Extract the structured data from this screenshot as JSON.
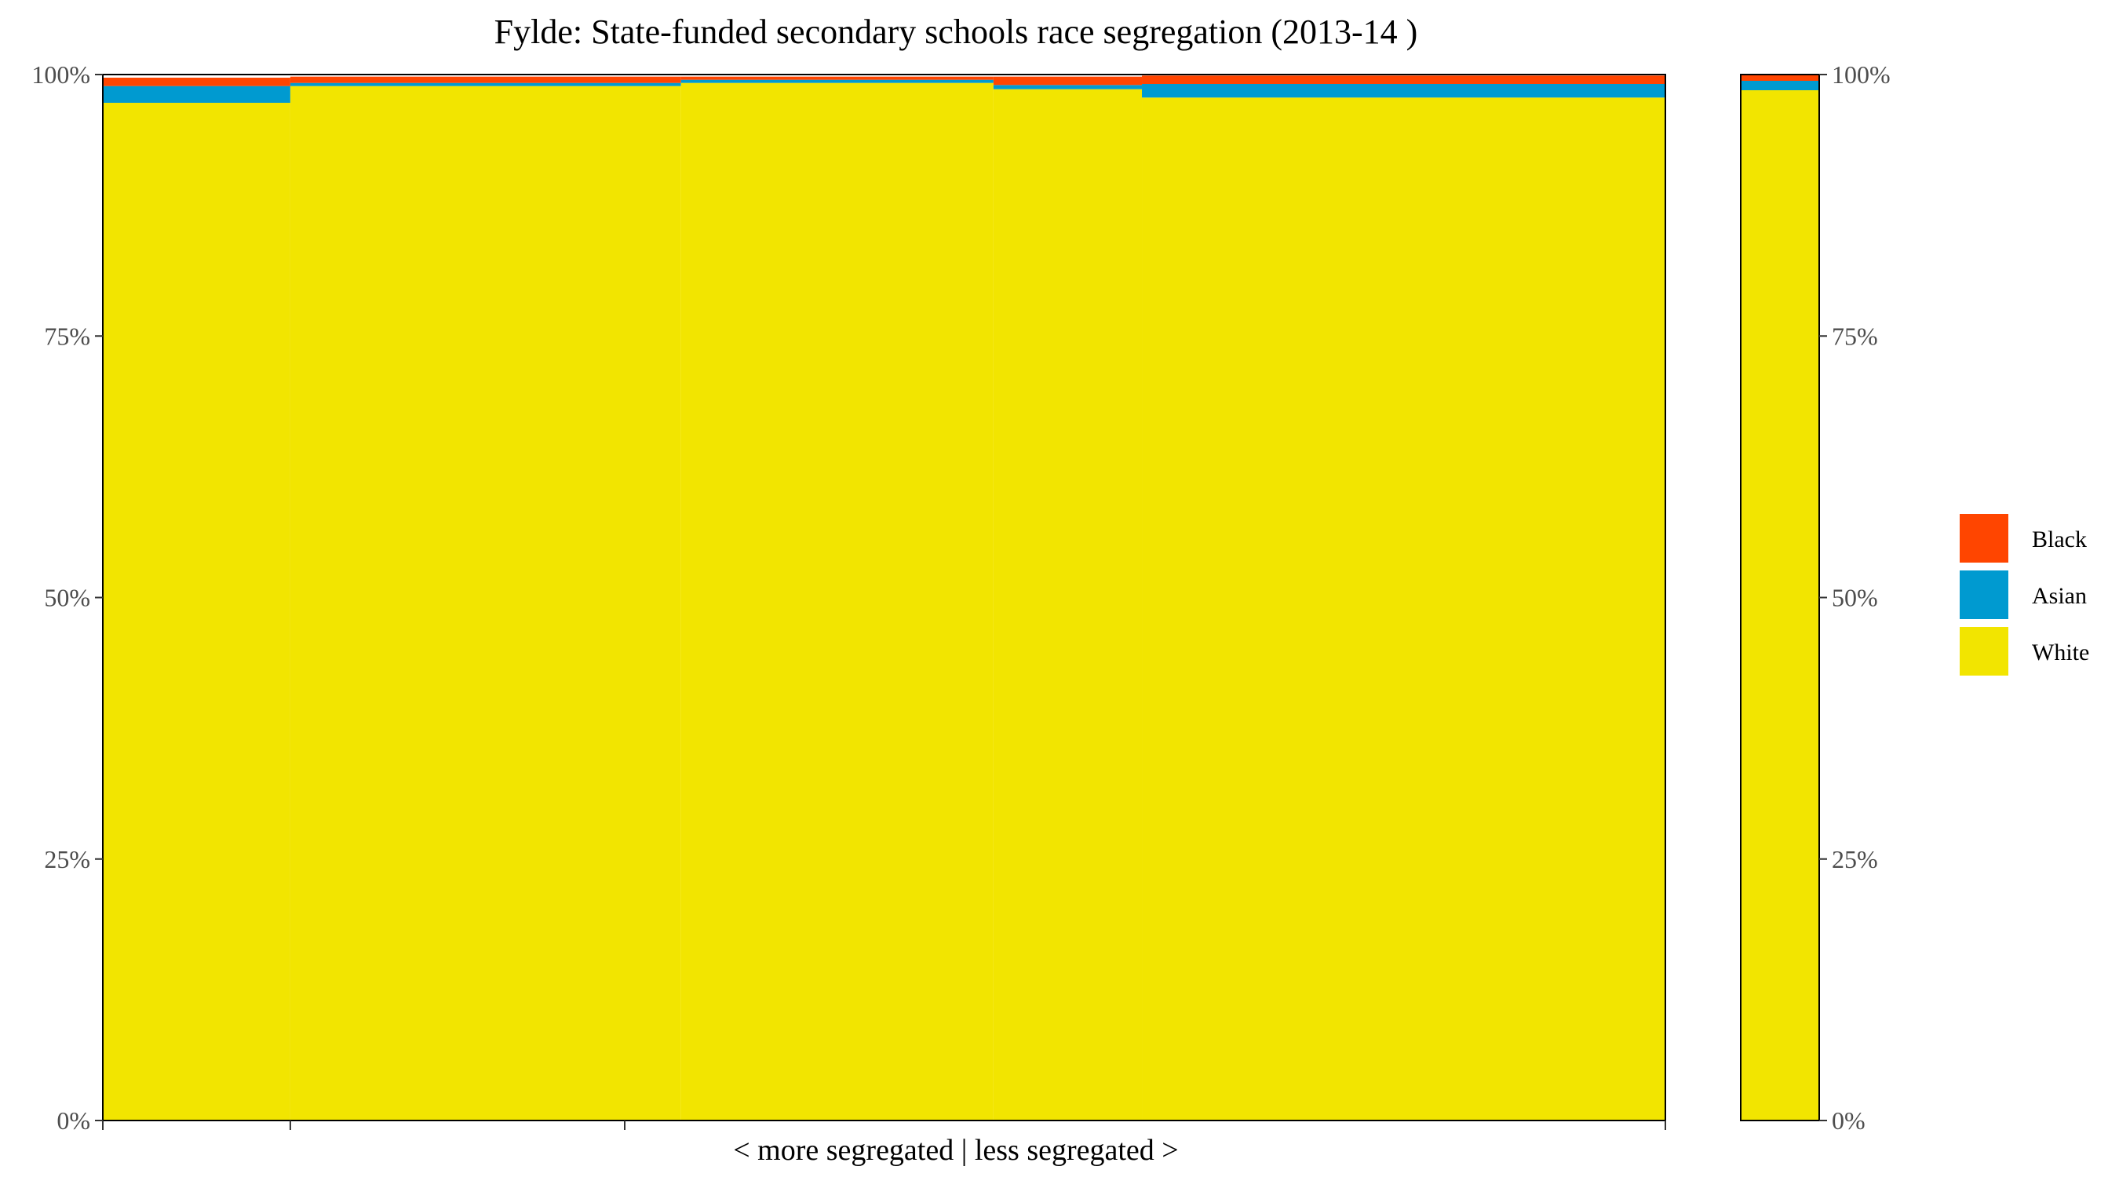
{
  "chart_data": {
    "type": "bar",
    "subtype": "stacked-marimekko",
    "title": "Fylde: State-funded secondary schools race segregation (2013-14 )",
    "xlabel": "< more segregated | less segregated >",
    "ylabel": "",
    "ylim": [
      0,
      100
    ],
    "yticks": [
      "0%",
      "25%",
      "50%",
      "75%",
      "100%"
    ],
    "yticks_right": [
      "0%",
      "25%",
      "50%",
      "75%",
      "100%"
    ],
    "legend": {
      "position": "right",
      "entries": [
        "Black",
        "Asian",
        "White"
      ]
    },
    "colors": {
      "Black": "#ff4500",
      "Asian": "#009ad0",
      "White": "#f2e500"
    },
    "schools": [
      {
        "share": 0.12,
        "White": 97.3,
        "Asian": 1.6,
        "Black": 0.8
      },
      {
        "share": 0.25,
        "White": 98.9,
        "Asian": 0.3,
        "Black": 0.6
      },
      {
        "share": 0.2,
        "White": 99.2,
        "Asian": 0.3,
        "Black": 0.3
      },
      {
        "share": 0.095,
        "White": 98.6,
        "Asian": 0.4,
        "Black": 0.8
      },
      {
        "share": 0.335,
        "White": 97.8,
        "Asian": 1.3,
        "Black": 0.8
      }
    ],
    "overall": {
      "White": 98.5,
      "Asian": 0.9,
      "Black": 0.6
    }
  }
}
